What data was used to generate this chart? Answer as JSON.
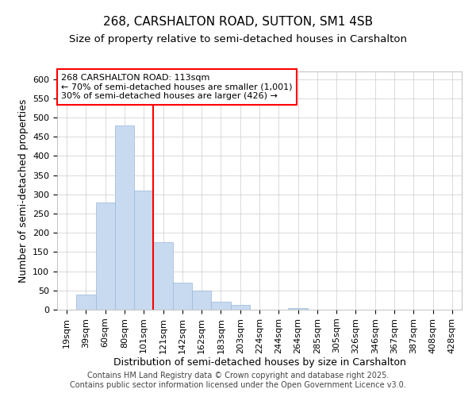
{
  "title1": "268, CARSHALTON ROAD, SUTTON, SM1 4SB",
  "title2": "Size of property relative to semi-detached houses in Carshalton",
  "xlabel": "Distribution of semi-detached houses by size in Carshalton",
  "ylabel": "Number of semi-detached properties",
  "categories": [
    "19sqm",
    "39sqm",
    "60sqm",
    "80sqm",
    "101sqm",
    "121sqm",
    "142sqm",
    "162sqm",
    "183sqm",
    "203sqm",
    "224sqm",
    "244sqm",
    "264sqm",
    "285sqm",
    "305sqm",
    "326sqm",
    "346sqm",
    "367sqm",
    "387sqm",
    "408sqm",
    "428sqm"
  ],
  "values": [
    0,
    40,
    280,
    480,
    310,
    175,
    70,
    50,
    20,
    12,
    0,
    0,
    5,
    0,
    0,
    0,
    0,
    0,
    0,
    0,
    0
  ],
  "bar_color": "#c8daf0",
  "bar_edge_color": "#9ab8d8",
  "ylim": [
    0,
    620
  ],
  "yticks": [
    0,
    50,
    100,
    150,
    200,
    250,
    300,
    350,
    400,
    450,
    500,
    550,
    600
  ],
  "red_line_x": 4.5,
  "red_line_label": "268 CARSHALTON ROAD: 113sqm",
  "annotation_line1": "← 70% of semi-detached houses are smaller (1,001)",
  "annotation_line2": "30% of semi-detached houses are larger (426) →",
  "footer1": "Contains HM Land Registry data © Crown copyright and database right 2025.",
  "footer2": "Contains public sector information licensed under the Open Government Licence v3.0.",
  "background_color": "#ffffff",
  "grid_color": "#cccccc",
  "title_fontsize": 11,
  "subtitle_fontsize": 9.5,
  "axis_label_fontsize": 9,
  "tick_fontsize": 8,
  "footer_fontsize": 7
}
